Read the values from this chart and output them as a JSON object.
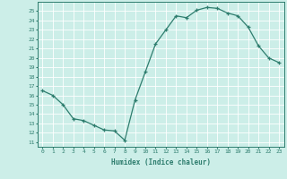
{
  "x": [
    0,
    1,
    2,
    3,
    4,
    5,
    6,
    7,
    8,
    9,
    10,
    11,
    12,
    13,
    14,
    15,
    16,
    17,
    18,
    19,
    20,
    21,
    22,
    23
  ],
  "y": [
    16.5,
    16.0,
    15.0,
    13.5,
    13.3,
    12.8,
    12.3,
    12.2,
    11.2,
    15.5,
    18.5,
    21.5,
    23.0,
    24.5,
    24.3,
    25.1,
    25.4,
    25.3,
    24.8,
    24.5,
    23.3,
    21.3,
    20.0,
    19.5
  ],
  "xlim": [
    -0.5,
    23.5
  ],
  "ylim": [
    10.5,
    26
  ],
  "yticks": [
    11,
    12,
    13,
    14,
    15,
    16,
    17,
    18,
    19,
    20,
    21,
    22,
    23,
    24,
    25
  ],
  "xticks": [
    0,
    1,
    2,
    3,
    4,
    5,
    6,
    7,
    8,
    9,
    10,
    11,
    12,
    13,
    14,
    15,
    16,
    17,
    18,
    19,
    20,
    21,
    22,
    23
  ],
  "xlabel": "Humidex (Indice chaleur)",
  "line_color": "#2e7d6e",
  "marker_color": "#2e7d6e",
  "bg_color": "#cceee8",
  "grid_color": "#ffffff",
  "tick_color": "#2e7d6e",
  "spine_color": "#2e7d6e"
}
